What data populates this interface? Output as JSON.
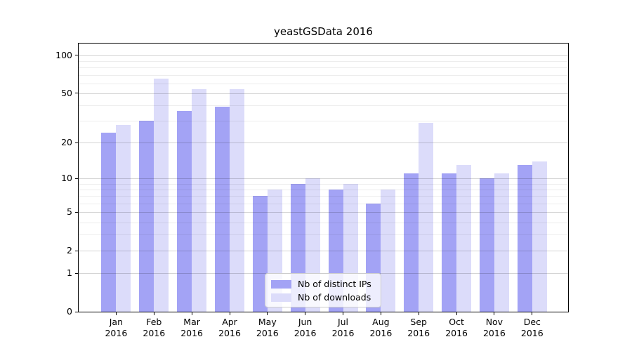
{
  "title": "yeastGSData 2016",
  "chart_data": {
    "type": "bar",
    "categories": [
      "Jan",
      "Feb",
      "Mar",
      "Apr",
      "May",
      "Jun",
      "Jul",
      "Aug",
      "Sep",
      "Oct",
      "Nov",
      "Dec"
    ],
    "year": "2016",
    "series": [
      {
        "name": "Nb of distinct IPs",
        "color": "#a3a3f5",
        "values": [
          24,
          30,
          36,
          39,
          7,
          9,
          8,
          6,
          11,
          11,
          10,
          13
        ]
      },
      {
        "name": "Nb of downloads",
        "color": "#dcdcfa",
        "values": [
          28,
          65,
          54,
          54,
          8,
          10,
          9,
          8,
          29,
          13,
          11,
          14
        ]
      }
    ],
    "yaxis": {
      "scale": "log1p",
      "major_ticks": [
        0,
        1,
        2,
        5,
        10,
        20,
        50,
        100
      ],
      "minor_gridlines": [
        3,
        4,
        6,
        7,
        8,
        9,
        30,
        40,
        60,
        70,
        80,
        90
      ],
      "ylim": [
        0,
        124
      ]
    },
    "xlabel": "",
    "ylabel": "",
    "grid": true,
    "legend_position": "lower-center"
  },
  "colors": {
    "bar_ips": "#a3a3f5",
    "bar_downloads": "#dcdcfa",
    "spine": "#000000",
    "background": "#ffffff"
  }
}
